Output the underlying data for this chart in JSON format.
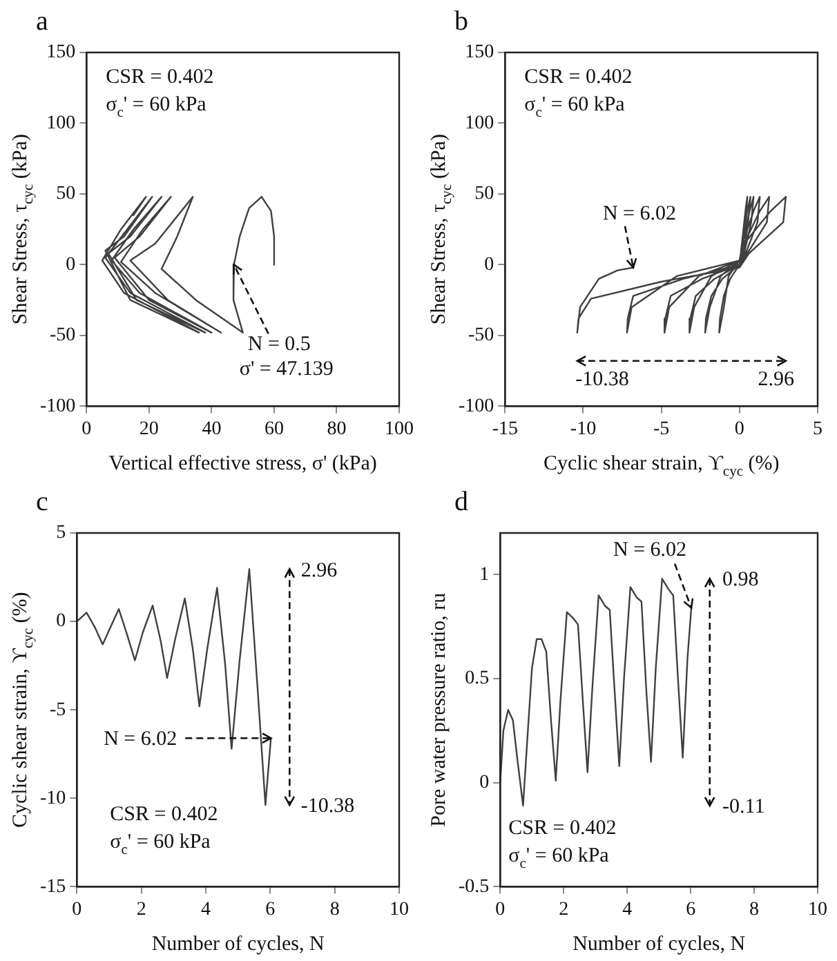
{
  "chart_data": [
    {
      "type": "line",
      "title": "a",
      "xlabel": "Vertical effective stress, σ' (kPa)",
      "ylabel": "Shear Stress, τ$_{cyc}$ (kPa)",
      "xlim": [
        0,
        100
      ],
      "xticks": [
        0,
        20,
        40,
        60,
        80,
        100
      ],
      "ylim": [
        -100,
        150
      ],
      "yticks": [
        -100,
        -50,
        0,
        50,
        100,
        150
      ],
      "series": [
        {
          "color": "#404040",
          "x": [
            60,
            60,
            59,
            56,
            52,
            49,
            47.139,
            47,
            50,
            35,
            24,
            29,
            34,
            22,
            14,
            26,
            43,
            22,
            11,
            18,
            27,
            17,
            9,
            20,
            40,
            17,
            8,
            15,
            24,
            14,
            7,
            16,
            38,
            14,
            6,
            13,
            21,
            12,
            6,
            14,
            36,
            12,
            5,
            11,
            19,
            15
          ],
          "values": [
            0,
            20,
            38,
            48,
            40,
            20,
            0,
            -25,
            -48,
            -25,
            -3,
            20,
            48,
            15,
            3,
            -25,
            -48,
            -20,
            2,
            25,
            48,
            20,
            5,
            -25,
            -48,
            -20,
            3,
            25,
            48,
            20,
            8,
            -25,
            -48,
            -20,
            5,
            25,
            48,
            20,
            10,
            -25,
            -48,
            -20,
            3,
            25,
            48,
            35
          ]
        }
      ],
      "annotations": [
        "CSR = 0.402",
        "σ$_{c}$' = 60 kPa",
        {
          "text": "N = 0.5",
          "x": 47.139,
          "y": 0
        },
        {
          "text": "σ' = 47.139",
          "x": 47.139,
          "y": 0
        }
      ]
    },
    {
      "type": "line",
      "title": "b",
      "xlabel": "Cyclic shear strain, ϒ$_{cyc}$ (%)",
      "ylabel": "Shear Stress, τ$_{cyc}$ (kPa)",
      "xlim": [
        -15,
        5
      ],
      "xticks": [
        -15,
        -10,
        -5,
        0,
        5
      ],
      "ylim": [
        -100,
        150
      ],
      "yticks": [
        -100,
        -50,
        0,
        50,
        100,
        150
      ],
      "series": [
        {
          "color": "#404040",
          "x": [
            0,
            0.2,
            0.4,
            0.5,
            0.4,
            0.2,
            0,
            -0.6,
            -1.0,
            -1.25,
            -1.3,
            -1.0,
            -0.7,
            0,
            0.2,
            0.5,
            0.7,
            0.55,
            0.3,
            0,
            -1.1,
            -1.8,
            -2.15,
            -2.2,
            -1.9,
            -1.2,
            0,
            0.2,
            0.65,
            0.9,
            0.75,
            0.3,
            0,
            -1.6,
            -2.8,
            -3.15,
            -3.2,
            -2.9,
            -1.8,
            0,
            0.2,
            0.9,
            1.3,
            1.15,
            0.4,
            0,
            -2.4,
            -4.4,
            -4.75,
            -4.8,
            -4.5,
            -2.6,
            0,
            0.3,
            1.3,
            1.9,
            1.75,
            0.5,
            0,
            -3.6,
            -6.8,
            -7.15,
            -7.2,
            -6.9,
            -4,
            0,
            0.3,
            2.0,
            2.96,
            2.8,
            0.6,
            0,
            -5,
            -9.5,
            -10.3,
            -10.38,
            -10.2,
            -9,
            -7.8,
            -6.8
          ],
          "values": [
            0,
            20,
            40,
            48,
            30,
            8,
            0,
            -10,
            -22,
            -38,
            -48,
            -30,
            -8,
            3,
            15,
            38,
            48,
            30,
            8,
            0,
            -10,
            -22,
            -38,
            -48,
            -30,
            -8,
            3,
            15,
            38,
            48,
            30,
            8,
            0,
            -10,
            -22,
            -38,
            -48,
            -30,
            -8,
            3,
            15,
            38,
            48,
            30,
            8,
            0,
            -10,
            -22,
            -38,
            -48,
            -30,
            -8,
            3,
            15,
            38,
            48,
            30,
            8,
            0,
            -10,
            -22,
            -38,
            -48,
            -30,
            -8,
            3,
            15,
            38,
            48,
            30,
            8,
            -2,
            -12,
            -24,
            -38,
            -48,
            -30,
            -10,
            -4,
            -2
          ]
        }
      ],
      "annotations": [
        "CSR = 0.402",
        "σ$_{c}$' = 60 kPa",
        {
          "text": "N = 6.02",
          "x": -6.8,
          "y": -2
        },
        "-10.38",
        "2.96"
      ]
    },
    {
      "type": "line",
      "title": "c",
      "xlabel": "Number of cycles, N",
      "ylabel": "Cyclic shear strain, ϒ$_{cyc}$ (%)",
      "xlim": [
        0,
        10
      ],
      "xticks": [
        0,
        2,
        4,
        6,
        8,
        10
      ],
      "ylim": [
        -15,
        5
      ],
      "yticks": [
        -15,
        -10,
        -5,
        0,
        5
      ],
      "series": [
        {
          "color": "#404040",
          "x": [
            0,
            0.3,
            0.55,
            0.8,
            1.05,
            1.3,
            1.55,
            1.8,
            2.05,
            2.35,
            2.6,
            2.8,
            3.05,
            3.35,
            3.6,
            3.8,
            4.05,
            4.35,
            4.6,
            4.8,
            5.05,
            5.35,
            5.6,
            5.85,
            6.02
          ],
          "values": [
            0,
            0.5,
            -0.3,
            -1.3,
            -0.3,
            0.7,
            -0.7,
            -2.2,
            -0.6,
            0.9,
            -1.1,
            -3.2,
            -1.0,
            1.3,
            -1.6,
            -4.8,
            -1.5,
            1.9,
            -2.4,
            -7.2,
            -2.2,
            2.96,
            -3.6,
            -10.38,
            -6.6
          ]
        }
      ],
      "annotations": [
        "CSR = 0.402",
        "σ$_{c}$' = 60 kPa",
        {
          "text": "N = 6.02",
          "x": 6.02,
          "y": -6.6
        },
        "2.96",
        "-10.38"
      ]
    },
    {
      "type": "line",
      "title": "d",
      "xlabel": "Number of cycles, N",
      "ylabel": "Pore water pressure ratio, ru",
      "xlim": [
        0,
        10
      ],
      "xticks": [
        0,
        2,
        4,
        6,
        8,
        10
      ],
      "ylim": [
        -0.5,
        1.2
      ],
      "yticks": [
        -0.5,
        0,
        0.5,
        1
      ],
      "series": [
        {
          "color": "#404040",
          "x": [
            0,
            0.1,
            0.25,
            0.4,
            0.55,
            0.72,
            0.85,
            1.0,
            1.15,
            1.3,
            1.45,
            1.6,
            1.75,
            1.9,
            2.1,
            2.3,
            2.45,
            2.6,
            2.75,
            2.9,
            3.1,
            3.3,
            3.45,
            3.6,
            3.75,
            3.9,
            4.1,
            4.3,
            4.45,
            4.6,
            4.75,
            4.9,
            5.1,
            5.3,
            5.45,
            5.6,
            5.75,
            5.9,
            6.02
          ],
          "values": [
            0,
            0.25,
            0.35,
            0.3,
            0.1,
            -0.11,
            0.2,
            0.55,
            0.69,
            0.69,
            0.63,
            0.3,
            0.01,
            0.4,
            0.82,
            0.79,
            0.76,
            0.4,
            0.05,
            0.45,
            0.9,
            0.85,
            0.83,
            0.45,
            0.08,
            0.5,
            0.94,
            0.89,
            0.87,
            0.45,
            0.1,
            0.55,
            0.98,
            0.93,
            0.9,
            0.5,
            0.12,
            0.6,
            0.84
          ]
        }
      ],
      "annotations": [
        "CSR = 0.402",
        "σ$_{c}$' = 60 kPa",
        {
          "text": "N = 6.02",
          "x": 6.02,
          "y": 0.84
        },
        "0.98",
        "-0.11"
      ]
    }
  ]
}
